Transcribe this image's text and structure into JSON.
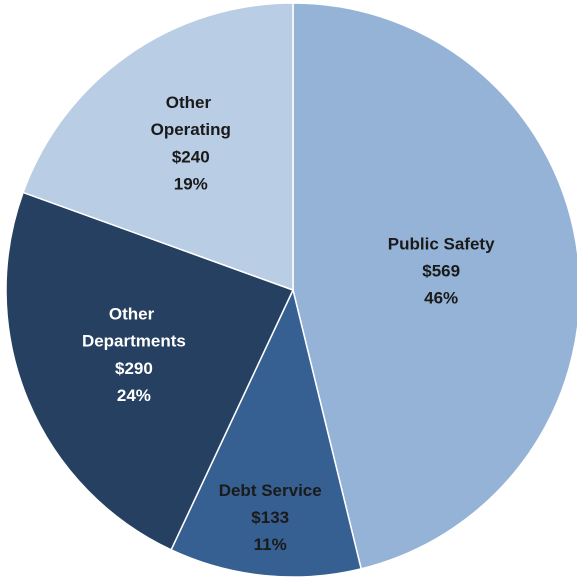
{
  "chart_data": {
    "type": "pie",
    "categories": [
      "Public Safety",
      "Debt Service",
      "Other Departments",
      "Other Operating"
    ],
    "values": [
      569,
      133,
      290,
      240
    ],
    "value_labels": [
      "$569",
      "$133",
      "$290",
      "$240"
    ],
    "percent_labels": [
      "46%",
      "11%",
      "24%",
      "19%"
    ],
    "colors": [
      "#95b3d7",
      "#376092",
      "#254061",
      "#b9cde5"
    ],
    "start_angle": 0,
    "direction": "clockwise"
  }
}
